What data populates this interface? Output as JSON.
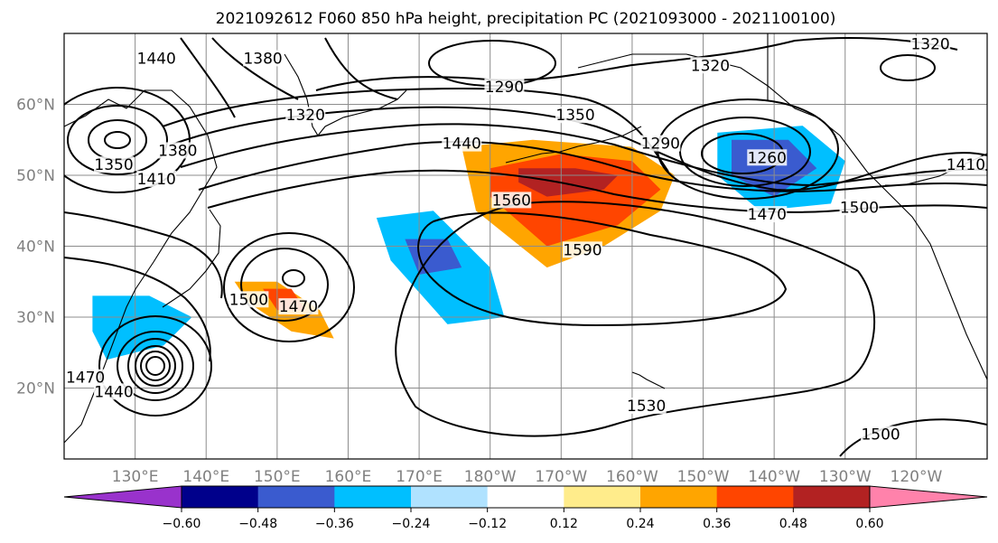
{
  "title": "2021092612 F060 850 hPa height, precipitation PC (2021093000 - 2021100100)",
  "lat_labels": [
    "60°N",
    "50°N",
    "40°N",
    "30°N",
    "20°N"
  ],
  "lon_labels": [
    "130°E",
    "140°E",
    "150°E",
    "160°E",
    "170°E",
    "180°W",
    "170°W",
    "160°W",
    "150°W",
    "140°W",
    "130°W",
    "120°W"
  ],
  "colorbar": {
    "ticks": [
      "−0.60",
      "−0.48",
      "−0.36",
      "−0.24",
      "−0.12",
      "0.12",
      "0.24",
      "0.36",
      "0.48",
      "0.60"
    ],
    "colors": [
      "#9932cc",
      "#00008b",
      "#3a5bcf",
      "#00bfff",
      "#b0e2ff",
      "#ffffff",
      "#ffec8b",
      "#ffa500",
      "#ff4500",
      "#b22222",
      "#ff82ab"
    ]
  },
  "contour_labels": [
    {
      "text": "1440",
      "lon": 133,
      "lat": 66
    },
    {
      "text": "1380",
      "lon": 148,
      "lat": 66
    },
    {
      "text": "1320",
      "lon": 154,
      "lat": 58
    },
    {
      "text": "1290",
      "lon": 182,
      "lat": 62
    },
    {
      "text": "1350",
      "lon": 192,
      "lat": 58
    },
    {
      "text": "1320",
      "lon": 211,
      "lat": 65
    },
    {
      "text": "1320",
      "lon": 242,
      "lat": 68
    },
    {
      "text": "1350",
      "lon": 127,
      "lat": 51
    },
    {
      "text": "1380",
      "lon": 136,
      "lat": 53
    },
    {
      "text": "1410",
      "lon": 133,
      "lat": 49
    },
    {
      "text": "1440",
      "lon": 176,
      "lat": 54
    },
    {
      "text": "1290",
      "lon": 204,
      "lat": 54
    },
    {
      "text": "1260",
      "lon": 219,
      "lat": 52
    },
    {
      "text": "1410",
      "lon": 247,
      "lat": 51
    },
    {
      "text": "1560",
      "lon": 183,
      "lat": 46
    },
    {
      "text": "1470",
      "lon": 219,
      "lat": 44
    },
    {
      "text": "1500",
      "lon": 232,
      "lat": 45
    },
    {
      "text": "1590",
      "lon": 193,
      "lat": 39
    },
    {
      "text": "1500",
      "lon": 146,
      "lat": 32
    },
    {
      "text": "1470",
      "lon": 153,
      "lat": 31
    },
    {
      "text": "1470",
      "lon": 123,
      "lat": 21
    },
    {
      "text": "1440",
      "lon": 127,
      "lat": 19
    },
    {
      "text": "1530",
      "lon": 202,
      "lat": 17
    },
    {
      "text": "1500",
      "lon": 235,
      "lat": 13
    }
  ],
  "shading": [
    {
      "level": "positive-mid",
      "color": "#ffa500",
      "lon": [
        176,
        186,
        200,
        206,
        204,
        196,
        188,
        178
      ],
      "lat": [
        54,
        55,
        54,
        50,
        45,
        40,
        37,
        45
      ]
    },
    {
      "level": "positive-high",
      "color": "#ff4500",
      "lon": [
        180,
        190,
        200,
        204,
        198,
        188,
        180
      ],
      "lat": [
        51,
        53,
        52,
        48,
        43,
        40,
        47
      ]
    },
    {
      "level": "positive-max",
      "color": "#b22222",
      "lon": [
        184,
        192,
        198,
        196,
        188,
        184
      ],
      "lat": [
        51,
        51,
        50,
        48,
        47,
        49
      ]
    },
    {
      "level": "positive-mid",
      "color": "#ffa500",
      "lon": [
        144,
        150,
        156,
        158,
        152,
        146
      ],
      "lat": [
        35,
        35,
        31,
        27,
        28,
        32
      ]
    },
    {
      "level": "positive-high",
      "color": "#ff4500",
      "lon": [
        148,
        152,
        154,
        150
      ],
      "lat": [
        34,
        34,
        31,
        31
      ]
    },
    {
      "level": "negative-mid",
      "color": "#00bfff",
      "lon": [
        212,
        224,
        230,
        228,
        218,
        212
      ],
      "lat": [
        56,
        57,
        52,
        46,
        45,
        50
      ]
    },
    {
      "level": "negative-high",
      "color": "#3a5bcf",
      "lon": [
        214,
        222,
        226,
        220,
        214
      ],
      "lat": [
        55,
        55,
        51,
        47,
        50
      ]
    },
    {
      "level": "negative-mid",
      "color": "#00bfff",
      "lon": [
        164,
        172,
        180,
        182,
        174,
        166
      ],
      "lat": [
        44,
        45,
        37,
        30,
        29,
        38
      ]
    },
    {
      "level": "negative-high",
      "color": "#3a5bcf",
      "lon": [
        168,
        174,
        176,
        170
      ],
      "lat": [
        41,
        41,
        37,
        36
      ]
    },
    {
      "level": "negative-mid",
      "color": "#00bfff",
      "lon": [
        124,
        132,
        138,
        134,
        126,
        124
      ],
      "lat": [
        33,
        33,
        30,
        26,
        24,
        28
      ]
    }
  ]
}
